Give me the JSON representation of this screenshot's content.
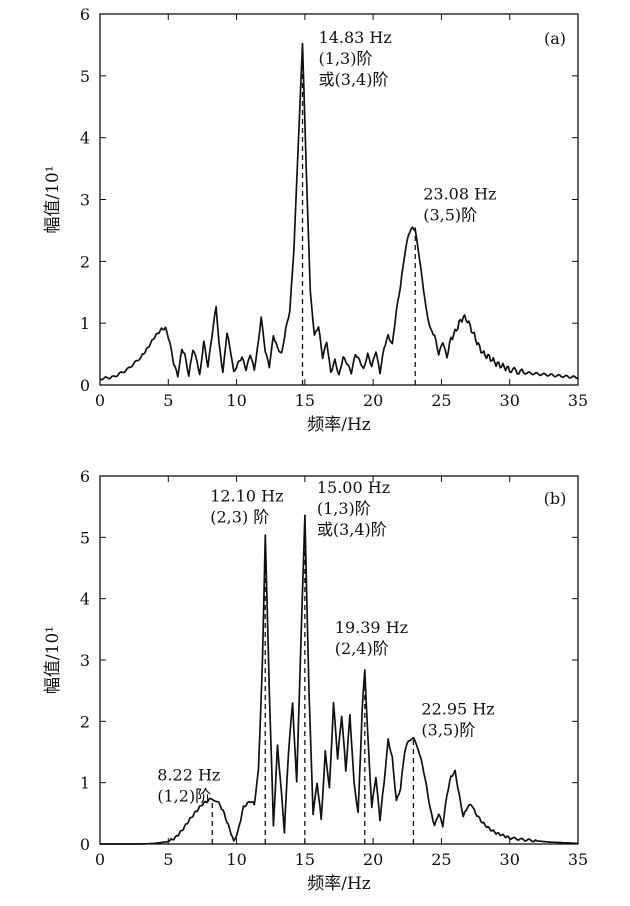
{
  "chart_data": [
    {
      "type": "line",
      "panel_label": "(a)",
      "xlabel": "频率/Hz",
      "ylabel": "幅值/10¹",
      "xlim": [
        0,
        35
      ],
      "ylim": [
        0,
        6
      ],
      "xticks": [
        "0",
        "5",
        "10",
        "15",
        "20",
        "25",
        "30",
        "35"
      ],
      "yticks": [
        "0",
        "1",
        "2",
        "3",
        "4",
        "5",
        "6"
      ],
      "grid": false,
      "series": [
        {
          "x": [
            0,
            1,
            2,
            3,
            3.5,
            4,
            4.5,
            4.8,
            5.1,
            5.4,
            5.7,
            6,
            6.2,
            6.5,
            6.8,
            7.1,
            7.3,
            7.6,
            7.9,
            8.2,
            8.5,
            8.7,
            9,
            9.3,
            9.6,
            9.8,
            10.1,
            10.4,
            10.7,
            11,
            11.3,
            11.6,
            11.8,
            12.1,
            12.4,
            12.7,
            13,
            13.3,
            13.6,
            13.9,
            14.2,
            14.5,
            14.83,
            15.1,
            15.4,
            15.7,
            16,
            16.3,
            16.6,
            16.9,
            17.2,
            17.5,
            17.8,
            18.1,
            18.4,
            18.7,
            19,
            19.3,
            19.6,
            19.9,
            20.2,
            20.5,
            20.8,
            21.1,
            21.4,
            21.7,
            22,
            22.3,
            22.6,
            22.9,
            23.08,
            23.3,
            23.6,
            23.9,
            24.2,
            24.5,
            24.8,
            25.1,
            25.4,
            25.7,
            26,
            26.3,
            26.6,
            26.9,
            27.2,
            27.5,
            27.8,
            28.1,
            28.5,
            29,
            29.5,
            30,
            31,
            32,
            33,
            34,
            35
          ],
          "y": [
            0.1,
            0.13,
            0.25,
            0.45,
            0.6,
            0.78,
            0.9,
            0.92,
            0.7,
            0.35,
            0.15,
            0.58,
            0.5,
            0.15,
            0.58,
            0.4,
            0.15,
            0.7,
            0.3,
            0.8,
            1.28,
            0.7,
            0.2,
            0.85,
            0.5,
            0.2,
            0.35,
            0.45,
            0.25,
            0.5,
            0.25,
            0.7,
            1.1,
            0.55,
            0.3,
            0.8,
            0.6,
            0.5,
            0.9,
            1.2,
            2.2,
            3.8,
            5.5,
            3.5,
            1.5,
            0.8,
            0.95,
            0.45,
            0.7,
            0.2,
            0.4,
            0.15,
            0.45,
            0.35,
            0.2,
            0.5,
            0.4,
            0.25,
            0.5,
            0.3,
            0.55,
            0.2,
            0.6,
            0.8,
            0.65,
            1.2,
            1.6,
            2.1,
            2.45,
            2.55,
            2.5,
            2.2,
            1.7,
            1.2,
            0.9,
            0.8,
            0.5,
            0.7,
            0.45,
            0.75,
            0.85,
            1.0,
            1.1,
            1.05,
            0.9,
            0.75,
            0.6,
            0.5,
            0.45,
            0.35,
            0.3,
            0.25,
            0.2,
            0.18,
            0.16,
            0.14,
            0.12
          ]
        }
      ],
      "annotations": [
        {
          "x": 14.83,
          "y": 5.5,
          "lines": [
            "14.83 Hz",
            "(1,3)阶",
            "或(3,4)阶"
          ]
        },
        {
          "x": 23.08,
          "y": 2.55,
          "lines": [
            "23.08 Hz",
            "(3,5)阶"
          ]
        }
      ]
    },
    {
      "type": "line",
      "panel_label": "(b)",
      "xlabel": "频率/Hz",
      "ylabel": "幅值/10¹",
      "xlim": [
        0,
        35
      ],
      "ylim": [
        0,
        6
      ],
      "xticks": [
        "0",
        "5",
        "10",
        "15",
        "20",
        "25",
        "30",
        "35"
      ],
      "yticks": [
        "0",
        "1",
        "2",
        "3",
        "4",
        "5",
        "6"
      ],
      "grid": false,
      "series": [
        {
          "x": [
            0,
            1,
            2,
            3,
            4,
            5,
            5.5,
            6,
            6.5,
            7,
            7.5,
            8,
            8.22,
            8.6,
            9,
            9.4,
            9.8,
            10.1,
            10.5,
            11,
            11.3,
            11.6,
            11.9,
            12.1,
            12.4,
            12.7,
            13,
            13.3,
            13.5,
            13.8,
            14.1,
            14.4,
            14.7,
            15,
            15.3,
            15.6,
            15.9,
            16.2,
            16.5,
            16.8,
            17.1,
            17.4,
            17.7,
            18,
            18.3,
            18.6,
            18.9,
            19.2,
            19.39,
            19.6,
            19.9,
            20.2,
            20.5,
            20.8,
            21.1,
            21.4,
            21.7,
            22,
            22.3,
            22.6,
            22.95,
            23.3,
            23.6,
            23.9,
            24.2,
            24.5,
            24.8,
            25.1,
            25.4,
            25.7,
            26,
            26.3,
            26.6,
            26.9,
            27.2,
            27.5,
            28,
            28.5,
            29,
            29.5,
            30,
            31,
            32,
            33,
            34,
            35
          ],
          "y": [
            0,
            0,
            0,
            0,
            0.01,
            0.04,
            0.1,
            0.22,
            0.38,
            0.52,
            0.65,
            0.72,
            0.74,
            0.7,
            0.55,
            0.3,
            0.05,
            0.2,
            0.6,
            0.7,
            0.65,
            1.2,
            3.0,
            5.05,
            2.5,
            0.3,
            1.6,
            0.8,
            0.2,
            1.5,
            2.3,
            1.0,
            3.2,
            5.35,
            2.5,
            0.5,
            1.0,
            0.4,
            1.5,
            0.9,
            2.3,
            1.4,
            2.1,
            1.2,
            2.1,
            1.0,
            0.5,
            2.2,
            2.85,
            1.8,
            0.6,
            1.1,
            0.4,
            1.0,
            1.7,
            1.4,
            0.7,
            0.9,
            1.5,
            1.7,
            1.72,
            1.55,
            1.3,
            0.95,
            0.55,
            0.3,
            0.5,
            0.3,
            0.8,
            1.1,
            1.18,
            0.8,
            0.45,
            0.6,
            0.65,
            0.5,
            0.35,
            0.25,
            0.18,
            0.14,
            0.1,
            0.07,
            0.05,
            0.03,
            0.02,
            0.01
          ]
        }
      ],
      "annotations": [
        {
          "x": 8.22,
          "y": 0.74,
          "lines": [
            "8.22 Hz",
            "(1,2)阶"
          ]
        },
        {
          "x": 12.1,
          "y": 5.05,
          "lines": [
            "12.10 Hz",
            "(2,3) 阶"
          ]
        },
        {
          "x": 15.0,
          "y": 5.35,
          "lines": [
            "15.00 Hz",
            "(1,3)阶",
            "或(3,4)阶"
          ]
        },
        {
          "x": 19.39,
          "y": 2.85,
          "lines": [
            "19.39 Hz",
            "(2,4)阶"
          ]
        },
        {
          "x": 22.95,
          "y": 1.72,
          "lines": [
            "22.95 Hz",
            "(3,5)阶"
          ]
        }
      ]
    }
  ]
}
